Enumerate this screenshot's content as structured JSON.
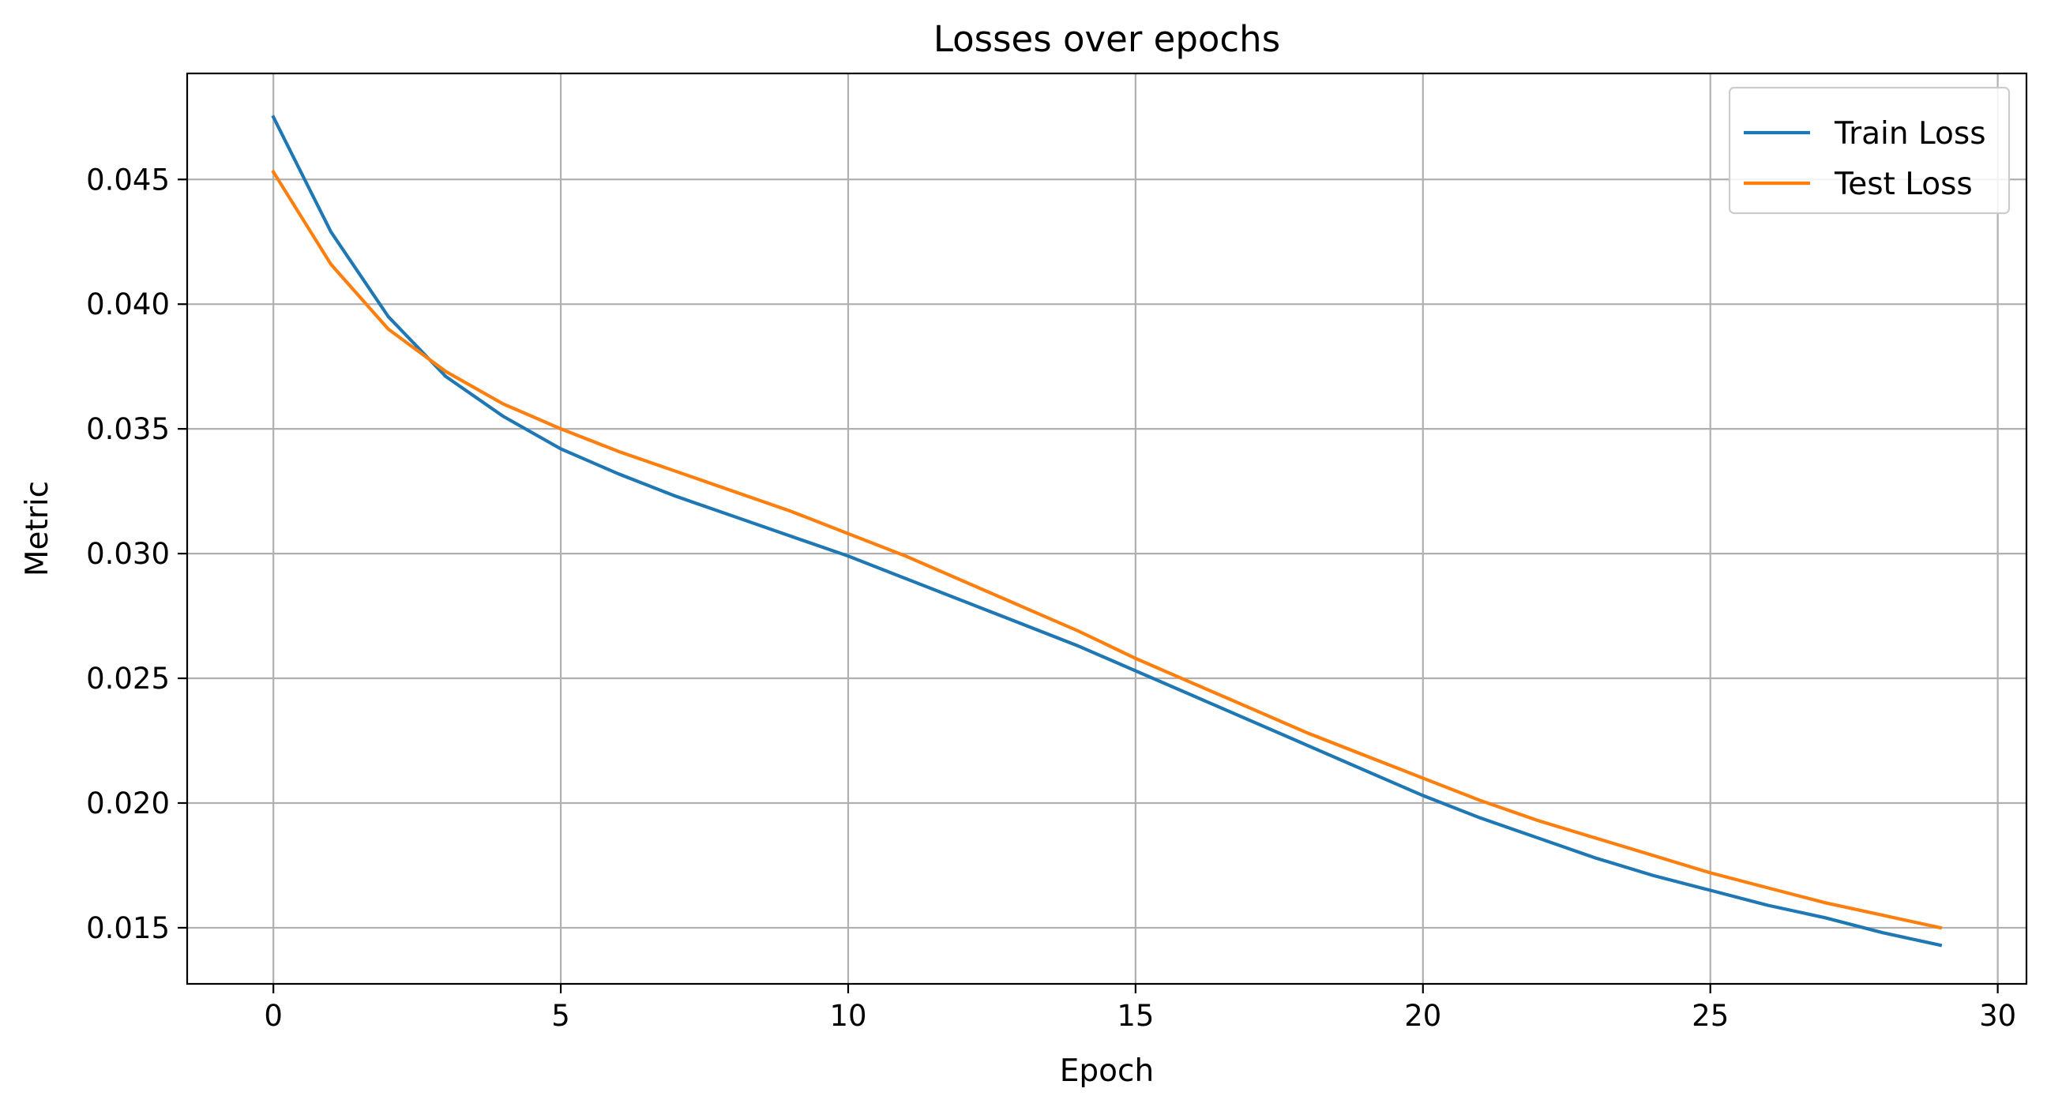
{
  "chart_data": {
    "type": "line",
    "title": "Losses over epochs",
    "xlabel": "Epoch",
    "ylabel": "Metric",
    "xlim": [
      -1.5,
      30.5
    ],
    "ylim": [
      0.01275,
      0.04925
    ],
    "xticks": [
      0,
      5,
      10,
      15,
      20,
      25,
      30
    ],
    "yticks": [
      0.015,
      0.02,
      0.025,
      0.03,
      0.035,
      0.04,
      0.045
    ],
    "xtick_labels": [
      "0",
      "5",
      "10",
      "15",
      "20",
      "25",
      "30"
    ],
    "ytick_labels": [
      "0.015",
      "0.020",
      "0.025",
      "0.030",
      "0.035",
      "0.040",
      "0.045"
    ],
    "grid": true,
    "legend": "top-right",
    "x": [
      0,
      1,
      2,
      3,
      4,
      5,
      6,
      7,
      8,
      9,
      10,
      11,
      12,
      13,
      14,
      15,
      16,
      17,
      18,
      19,
      20,
      21,
      22,
      23,
      24,
      25,
      26,
      27,
      28,
      29
    ],
    "series": [
      {
        "name": "Train Loss",
        "color": "#1f77b4",
        "values": [
          0.0475,
          0.0429,
          0.0395,
          0.0371,
          0.0355,
          0.0342,
          0.0332,
          0.0323,
          0.0315,
          0.0307,
          0.0299,
          0.029,
          0.0281,
          0.0272,
          0.0263,
          0.0253,
          0.0243,
          0.0233,
          0.0223,
          0.0213,
          0.0203,
          0.0194,
          0.0186,
          0.0178,
          0.0171,
          0.0165,
          0.0159,
          0.0154,
          0.0148,
          0.0143
        ]
      },
      {
        "name": "Test Loss",
        "color": "#ff7f0e",
        "values": [
          0.0453,
          0.0416,
          0.039,
          0.0373,
          0.036,
          0.035,
          0.0341,
          0.0333,
          0.0325,
          0.0317,
          0.0308,
          0.0299,
          0.0289,
          0.0279,
          0.0269,
          0.0258,
          0.0248,
          0.0238,
          0.0228,
          0.0219,
          0.021,
          0.0201,
          0.0193,
          0.0186,
          0.0179,
          0.0172,
          0.0166,
          0.016,
          0.0155,
          0.015
        ]
      }
    ]
  }
}
